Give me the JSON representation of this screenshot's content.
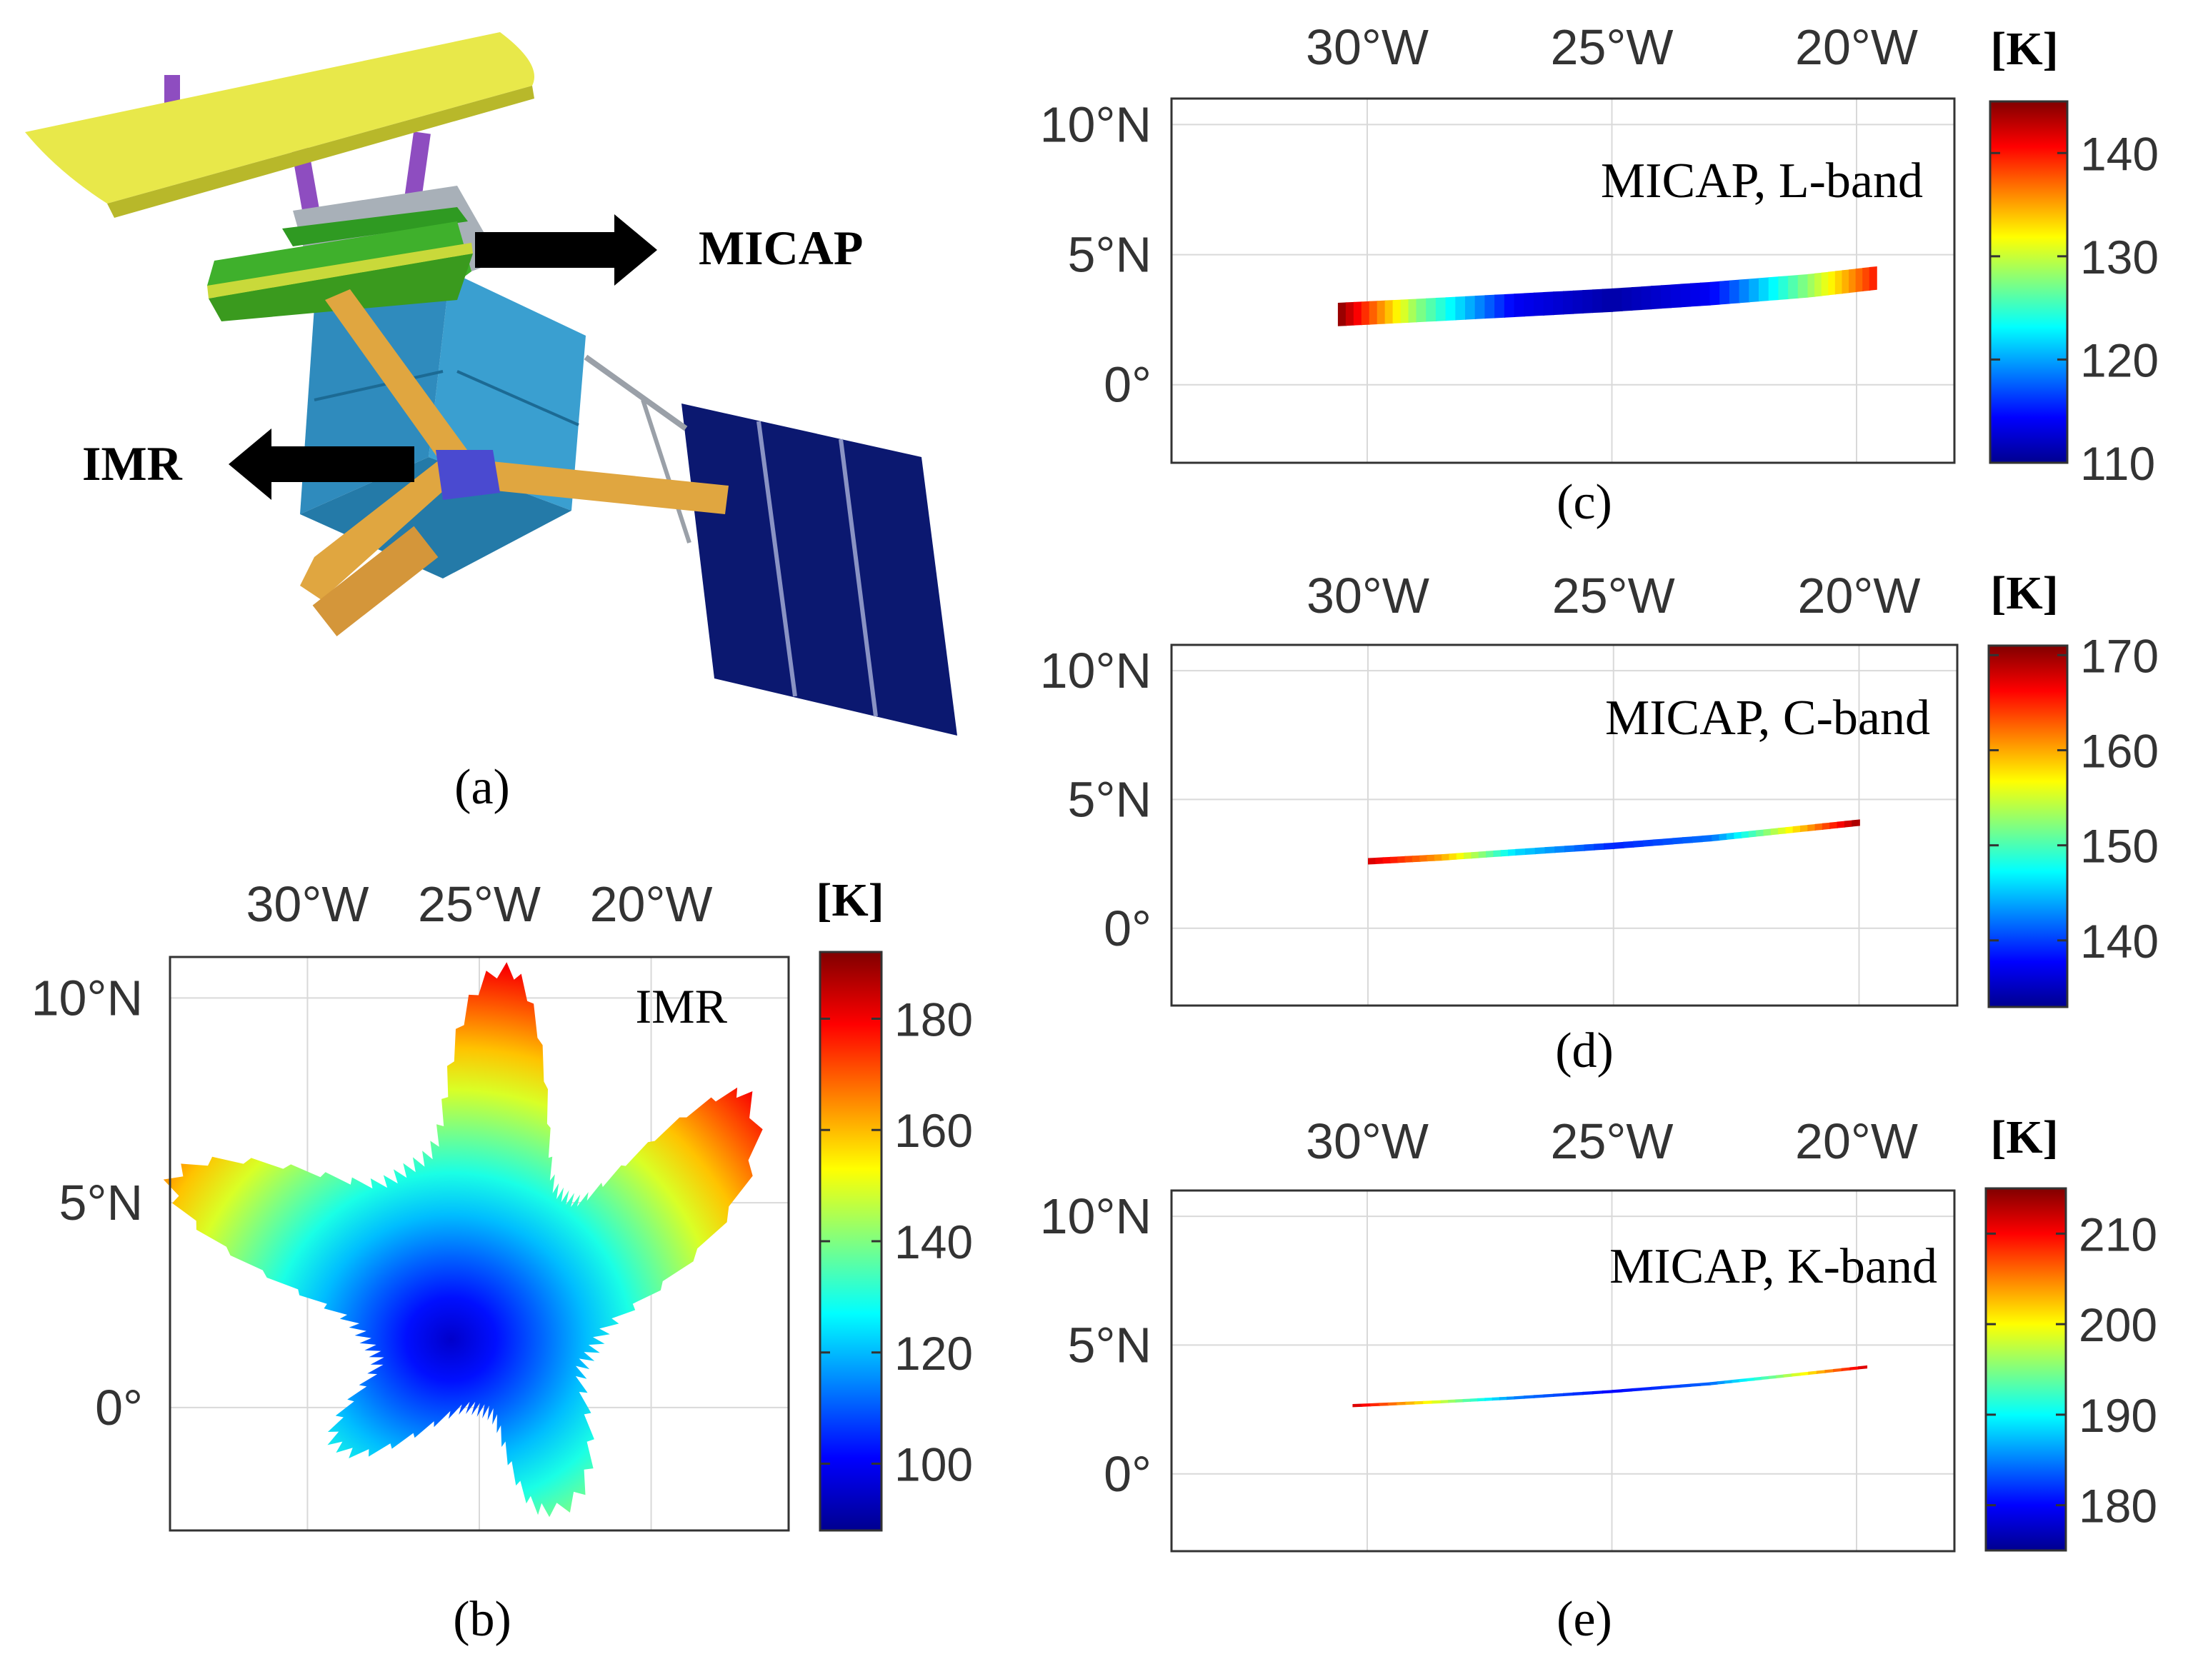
{
  "figure": {
    "panel_a": {
      "caption": "(a)",
      "micap_label": "MICAP",
      "imr_label": "IMR",
      "colors": {
        "reflector": "#e8e84a",
        "feed": "#3fb02c",
        "bus": "#3a9fd0",
        "boom": "#e0a640",
        "solar_panel": "#0b1870",
        "strut": "#8e4dc0"
      }
    },
    "colorscale": [
      "#00008f",
      "#0000ff",
      "#0080ff",
      "#00ffff",
      "#80ff80",
      "#ffff00",
      "#ff8000",
      "#ff0000",
      "#800000"
    ]
  },
  "chart_data": [
    {
      "panel": "b",
      "type": "heatmap",
      "caption": "(b)",
      "label": "IMR",
      "x_ticks": [
        "30°W",
        "25°W",
        "20°W"
      ],
      "x_tick_values": [
        -30,
        -25,
        -20
      ],
      "y_ticks": [
        "10°N",
        "5°N",
        "0°"
      ],
      "y_tick_values": [
        10,
        5,
        0
      ],
      "xlim": [
        -34,
        -16
      ],
      "ylim": [
        -3,
        11
      ],
      "grid": true,
      "colorbar": {
        "title": "[K]",
        "ticks": [
          "100",
          "120",
          "140",
          "160",
          "180"
        ],
        "tick_values": [
          100,
          120,
          140,
          160,
          180
        ],
        "range": [
          88,
          192
        ]
      },
      "footprint": {
        "shape": "five-armed star",
        "center": [
          -24,
          2
        ],
        "arm_tips": [
          [
            -24.2,
            10.7
          ],
          [
            -17.2,
            7.6
          ],
          [
            -34,
            5.5
          ],
          [
            -29,
            -1
          ],
          [
            -23,
            -2.5
          ]
        ],
        "min_value": 95,
        "max_value": 190
      }
    },
    {
      "panel": "c",
      "type": "heatmap",
      "caption": "(c)",
      "label": "MICAP, L-band",
      "x_ticks": [
        "30°W",
        "25°W",
        "20°W"
      ],
      "x_tick_values": [
        -30,
        -25,
        -20
      ],
      "y_ticks": [
        "10°N",
        "5°N",
        "0°"
      ],
      "y_tick_values": [
        10,
        5,
        0
      ],
      "xlim": [
        -34,
        -18
      ],
      "ylim": [
        -3,
        11
      ],
      "grid": true,
      "colorbar": {
        "title": "[K]",
        "ticks": [
          "110",
          "120",
          "130",
          "140"
        ],
        "tick_values": [
          110,
          120,
          130,
          140
        ],
        "range": [
          110,
          145
        ]
      },
      "swath": {
        "x": [
          -30.6,
          -29.0,
          -27.0,
          -25.0,
          -23.0,
          -21.0,
          -19.6
        ],
        "y": [
          2.7,
          2.85,
          3.05,
          3.25,
          3.5,
          3.8,
          4.1
        ],
        "values": [
          145,
          128,
          114,
          111,
          114,
          128,
          140
        ],
        "width_deg": 0.9
      }
    },
    {
      "panel": "d",
      "type": "heatmap",
      "caption": "(d)",
      "label": "MICAP, C-band",
      "x_ticks": [
        "30°W",
        "25°W",
        "20°W"
      ],
      "x_tick_values": [
        -30,
        -25,
        -20
      ],
      "y_ticks": [
        "10°N",
        "5°N",
        "0°"
      ],
      "y_tick_values": [
        10,
        5,
        0
      ],
      "xlim": [
        -34,
        -18
      ],
      "ylim": [
        -3,
        11
      ],
      "grid": true,
      "colorbar": {
        "title": "[K]",
        "ticks": [
          "140",
          "150",
          "160",
          "170"
        ],
        "tick_values": [
          140,
          150,
          160,
          170
        ],
        "range": [
          133,
          171
        ]
      },
      "swath": {
        "x": [
          -30.0,
          -28.5,
          -27.0,
          -25.0,
          -23.0,
          -21.5,
          -20.0
        ],
        "y": [
          2.6,
          2.75,
          2.95,
          3.2,
          3.5,
          3.8,
          4.1
        ],
        "values": [
          168,
          160,
          146,
          139,
          142,
          156,
          170
        ],
        "width_deg": 0.25
      }
    },
    {
      "panel": "e",
      "type": "heatmap",
      "caption": "(e)",
      "label": "MICAP, K-band",
      "x_ticks": [
        "30°W",
        "25°W",
        "20°W"
      ],
      "x_tick_values": [
        -30,
        -25,
        -20
      ],
      "y_ticks": [
        "10°N",
        "5°N",
        "0°"
      ],
      "y_tick_values": [
        10,
        5,
        0
      ],
      "xlim": [
        -34,
        -18
      ],
      "ylim": [
        -3,
        11
      ],
      "grid": true,
      "colorbar": {
        "title": "[K]",
        "ticks": [
          "180",
          "190",
          "200",
          "210"
        ],
        "tick_values": [
          180,
          190,
          200,
          210
        ],
        "range": [
          175,
          215
        ]
      },
      "swath": {
        "x": [
          -30.3,
          -28.5,
          -27.0,
          -25.0,
          -23.0,
          -21.5,
          -19.8
        ],
        "y": [
          2.65,
          2.8,
          2.95,
          3.2,
          3.5,
          3.8,
          4.15
        ],
        "values": [
          212,
          198,
          185,
          180,
          184,
          196,
          212
        ],
        "width_deg": 0.12
      }
    }
  ]
}
